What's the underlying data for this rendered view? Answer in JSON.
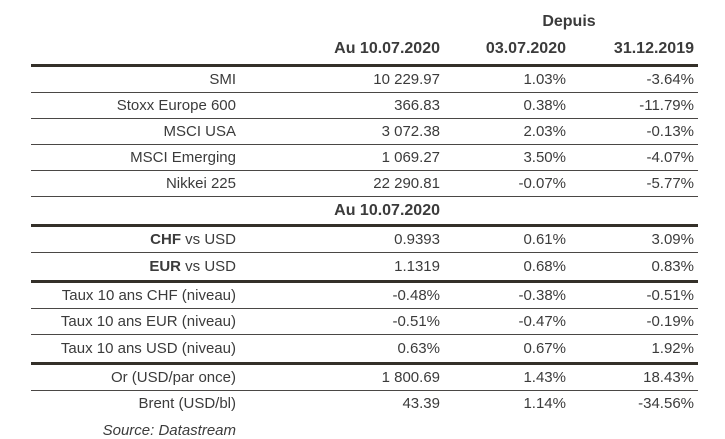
{
  "colors": {
    "text": "#3b3b3b",
    "rule_thin": "#4a4745",
    "rule_thick": "#343029",
    "background": "#ffffff"
  },
  "table": {
    "depuis_label": "Depuis",
    "columns": {
      "value_date": "Au 10.07.2020",
      "since_week": "03.07.2020",
      "since_year": "31.12.2019"
    },
    "section_header": "Au 10.07.2020",
    "rows": [
      {
        "label_strong": "",
        "label": "SMI",
        "v1": "10 229.97",
        "v2": "1.03%",
        "v3": "-3.64%"
      },
      {
        "label_strong": "",
        "label": "Stoxx Europe 600",
        "v1": "366.83",
        "v2": "0.38%",
        "v3": "-11.79%"
      },
      {
        "label_strong": "",
        "label": "MSCI USA",
        "v1": "3 072.38",
        "v2": "2.03%",
        "v3": "-0.13%"
      },
      {
        "label_strong": "",
        "label": "MSCI Emerging",
        "v1": "1 069.27",
        "v2": "3.50%",
        "v3": "-4.07%"
      },
      {
        "label_strong": "",
        "label": "Nikkei 225",
        "v1": "22 290.81",
        "v2": "-0.07%",
        "v3": "-5.77%"
      },
      {
        "label_strong": "CHF",
        "label": " vs USD",
        "v1": "0.9393",
        "v2": "0.61%",
        "v3": "3.09%"
      },
      {
        "label_strong": "EUR",
        "label": " vs USD",
        "v1": "1.1319",
        "v2": "0.68%",
        "v3": "0.83%"
      },
      {
        "label_strong": "",
        "label": "Taux 10 ans CHF (niveau)",
        "v1": "-0.48%",
        "v2": "-0.38%",
        "v3": "-0.51%"
      },
      {
        "label_strong": "",
        "label": "Taux 10 ans EUR (niveau)",
        "v1": "-0.51%",
        "v2": "-0.47%",
        "v3": "-0.19%"
      },
      {
        "label_strong": "",
        "label": "Taux 10 ans USD (niveau)",
        "v1": "0.63%",
        "v2": "0.67%",
        "v3": "1.92%"
      },
      {
        "label_strong": "",
        "label": "Or (USD/par once)",
        "v1": "1 800.69",
        "v2": "1.43%",
        "v3": "18.43%"
      },
      {
        "label_strong": "",
        "label": "Brent (USD/bl)",
        "v1": "43.39",
        "v2": "1.14%",
        "v3": "-34.56%"
      }
    ],
    "source_note": "Source: Datastream"
  }
}
